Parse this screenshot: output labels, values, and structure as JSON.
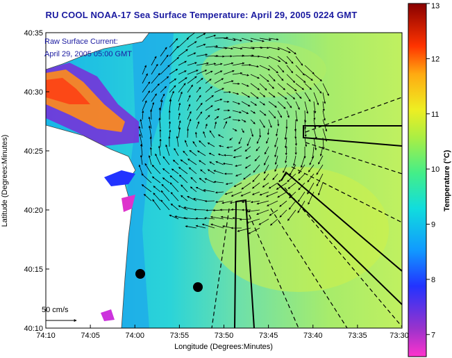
{
  "title": "RU COOL  NOAA-17  Sea Surface Temperature:  April 29, 2005 0224 GMT",
  "overlay": {
    "line1": "Raw Surface Current:",
    "line2": "April 29, 2005 05:00 GMT",
    "scale_label": "50 cm/s"
  },
  "axes": {
    "xlabel": "Longitude (Degrees:Minutes)",
    "ylabel": "Latitude (Degrees:Minutes)",
    "xticks": [
      "74:10",
      "74:05",
      "74:00",
      "73:55",
      "73:50",
      "73:45",
      "73:40",
      "73:35",
      "73:30"
    ],
    "yticks": [
      "40:35",
      "40:30",
      "40:25",
      "40:20",
      "40:15",
      "40:10"
    ]
  },
  "colorbar": {
    "label": "Temperature (°C)",
    "ticks": [
      "13",
      "12",
      "11",
      "10",
      "9",
      "8",
      "7"
    ],
    "range": [
      6.6,
      13
    ]
  },
  "colors": {
    "title": "#1a1aa0",
    "land": "#ffffff",
    "arrows": "#000000"
  }
}
